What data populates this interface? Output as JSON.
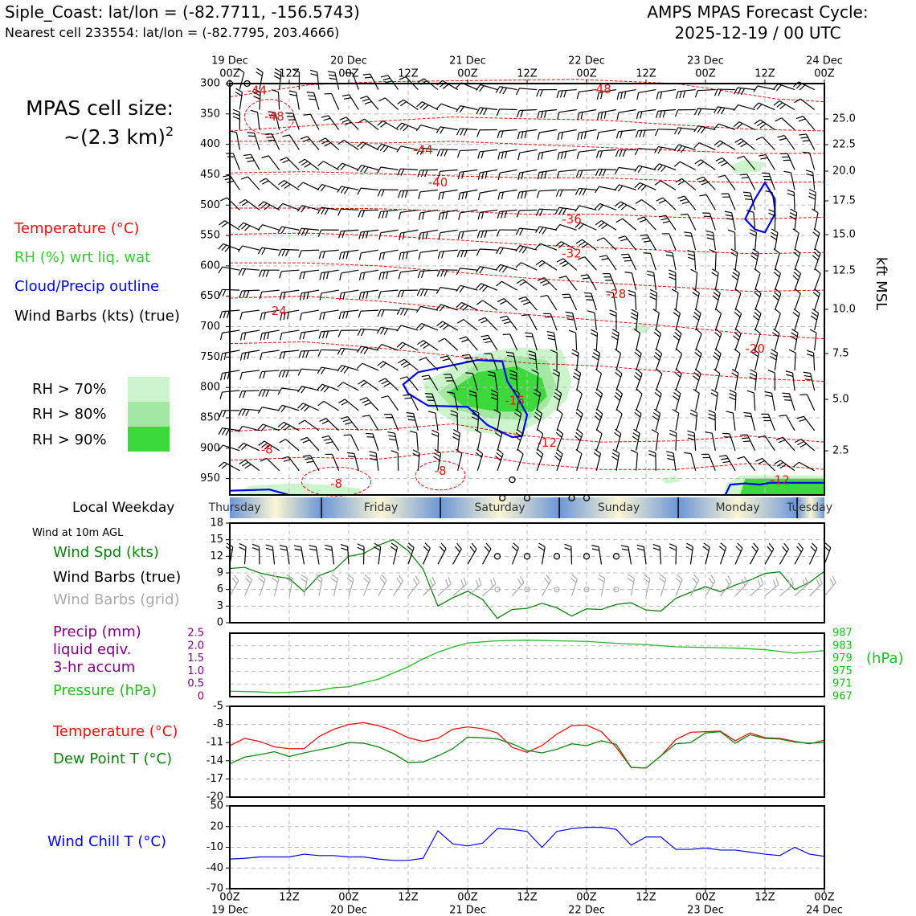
{
  "header": {
    "location_line": "Siple_Coast: lat/lon = (-82.7711, -156.5743)",
    "nearest_line": "Nearest cell 233554: lat/lon = (-82.7795, 203.4666)",
    "forecast_title": "AMPS MPAS Forecast Cycle:",
    "forecast_cycle": "2025-12-19 / 00 UTC"
  },
  "cell_size": {
    "label": "MPAS cell size:",
    "value": "~(2.3 km)",
    "exponent": "2"
  },
  "legend": {
    "temperature": "Temperature (°C)",
    "rh": "RH (%) wrt liq. wat",
    "cloud": "Cloud/Precip outline",
    "wind": "Wind Barbs (kts) (true)",
    "rh70": "RH > 70%",
    "rh80": "RH > 80%",
    "rh90": "RH > 90%"
  },
  "colors": {
    "temperature": "#ee1111",
    "rh_label": "#33cc33",
    "cloud": "#0000ee",
    "rh70": "#ccf5cc",
    "rh80": "#a2e8a2",
    "rh90": "#3bd93b",
    "wind_spd": "#0f7f0f",
    "precip": "#800080",
    "pressure": "#22bb22",
    "dewpoint": "#118811",
    "windchill": "#0000ee",
    "grid_barb": "#aaaaaa",
    "weekday_blue": "#6c96d6",
    "weekday_yellow": "#fbf6d3"
  },
  "time_axis": {
    "top_dates": [
      "19 Dec",
      "20 Dec",
      "21 Dec",
      "22 Dec",
      "23 Dec",
      "24 Dec"
    ],
    "hours": [
      "00Z",
      "12Z",
      "00Z",
      "12Z",
      "00Z",
      "12Z",
      "00Z",
      "12Z",
      "00Z",
      "12Z",
      "00Z"
    ],
    "bottom_dates": [
      "19 Dec",
      "20 Dec",
      "21 Dec",
      "22 Dec",
      "23 Dec",
      "24 Dec"
    ]
  },
  "weekday": {
    "title": "Local Weekday",
    "days": [
      "Thursday",
      "Friday",
      "Saturday",
      "Sunday",
      "Monday",
      "Tuesday"
    ]
  },
  "panels": {
    "wind10m": {
      "title": "Wind at 10m AGL",
      "spd_label": "Wind Spd (kts)",
      "barb_true_label": "Wind Barbs (true)",
      "barb_grid_label": "Wind Barbs (grid)"
    },
    "precip": {
      "precip_label1": "Precip (mm)",
      "precip_label2": "liquid eqiv.",
      "precip_label3": "3-hr accum",
      "pressure_label": "Pressure (hPa)",
      "right_unit": "(hPa)"
    },
    "temp": {
      "temp_label": "Temperature (°C)",
      "dew_label": "Dew Point T (°C)"
    },
    "windchill": {
      "label": "Wind Chill T (°C)"
    }
  },
  "chart_data": [
    {
      "type": "contour",
      "name": "cross_section",
      "x_hours": [
        0,
        120
      ],
      "left_axis_ticks": [
        "300",
        "350",
        "400",
        "450",
        "500",
        "550",
        "600",
        "650",
        "700",
        "750",
        "800",
        "850",
        "900",
        "950"
      ],
      "left_axis_values": [
        300,
        350,
        400,
        450,
        500,
        550,
        600,
        650,
        700,
        750,
        800,
        850,
        900,
        950
      ],
      "right_axis_ticks": [
        "25.0",
        "22.5",
        "20.0",
        "17.5",
        "15.0",
        "12.5",
        "10.0",
        "7.5",
        "5.0",
        "2.5"
      ],
      "right_axis_label": "kft MSL",
      "temperature_contour_labels": [
        {
          "text": "-44",
          "h": 5.5,
          "p": 312
        },
        {
          "text": "-48",
          "h": 9,
          "p": 355
        },
        {
          "text": "-48",
          "h": 75,
          "p": 310
        },
        {
          "text": "-44",
          "h": 39,
          "p": 410
        },
        {
          "text": "-40",
          "h": 42,
          "p": 463
        },
        {
          "text": "-36",
          "h": 69,
          "p": 524
        },
        {
          "text": "-32",
          "h": 69,
          "p": 580
        },
        {
          "text": "-28",
          "h": 78,
          "p": 647
        },
        {
          "text": "-24",
          "h": 9.5,
          "p": 675
        },
        {
          "text": "-20",
          "h": 106,
          "p": 737
        },
        {
          "text": "-16",
          "h": 57.5,
          "p": 822
        },
        {
          "text": "-12",
          "h": 64,
          "p": 892
        },
        {
          "text": "-8",
          "h": 7.5,
          "p": 903
        },
        {
          "text": "-8",
          "h": 21.5,
          "p": 959
        },
        {
          "text": "-8",
          "h": 42.5,
          "p": 938
        },
        {
          "text": "-12",
          "h": 111,
          "p": 953
        }
      ]
    },
    {
      "type": "line",
      "name": "wind_speed_10m",
      "ylim": [
        0,
        18
      ],
      "yticks": [
        0,
        3,
        6,
        9,
        12,
        15,
        18
      ],
      "x_hours": [
        0,
        3,
        6,
        9,
        12,
        15,
        18,
        21,
        24,
        27,
        30,
        33,
        36,
        39,
        42,
        45,
        48,
        51,
        54,
        57,
        60,
        63,
        66,
        69,
        72,
        75,
        78,
        81,
        84,
        87,
        90,
        93,
        96,
        99,
        102,
        105,
        108,
        111,
        114,
        117,
        120
      ],
      "values": [
        9.8,
        10,
        9,
        8.4,
        8,
        5.6,
        8.5,
        9.5,
        12,
        12.5,
        14,
        15,
        13,
        9.7,
        3,
        4.5,
        5.7,
        4.2,
        0.8,
        2.4,
        2.6,
        3.5,
        2.7,
        1.2,
        2.5,
        2.4,
        3.3,
        3.6,
        2.3,
        2.1,
        4.4,
        5.5,
        6.5,
        5.6,
        6.8,
        7.7,
        8.9,
        9.2,
        6,
        7.3,
        9.3
      ],
      "barb_rows_y": [
        12,
        6
      ]
    },
    {
      "type": "line",
      "name": "precip_pressure",
      "left_ylim": [
        0,
        2.5
      ],
      "left_yticks": [
        "0",
        "0.5",
        "1.0",
        "1.5",
        "2.0",
        "2.5"
      ],
      "right_ylim": [
        967,
        987
      ],
      "right_yticks": [
        "967",
        "971",
        "975",
        "979",
        "983",
        "987"
      ],
      "x_hours": [
        0,
        6,
        9,
        12,
        18,
        21,
        24,
        27,
        30,
        36,
        39,
        42,
        45,
        48,
        54,
        60,
        66,
        72,
        78,
        84,
        90,
        96,
        102,
        108,
        114,
        120
      ],
      "pressure": [
        968.7,
        968.5,
        968.2,
        968.4,
        969,
        969.8,
        970.1,
        971.4,
        972.5,
        976.4,
        978.9,
        981,
        982.6,
        983.9,
        984.6,
        984.8,
        984.6,
        984.4,
        983.8,
        983.4,
        982.7,
        982.5,
        982.3,
        981.8,
        980.7,
        981.5
      ],
      "precip": []
    },
    {
      "type": "line",
      "name": "temperature_dewpoint",
      "ylim": [
        -20,
        -5
      ],
      "yticks": [
        "-5",
        "-8",
        "-11",
        "-14",
        "-17",
        "-20"
      ],
      "x_hours": [
        0,
        3,
        6,
        9,
        12,
        15,
        18,
        21,
        24,
        27,
        30,
        33,
        36,
        39,
        42,
        45,
        48,
        51,
        54,
        57,
        60,
        63,
        66,
        69,
        72,
        75,
        78,
        81,
        84,
        87,
        90,
        93,
        96,
        99,
        102,
        105,
        108,
        111,
        114,
        117,
        120
      ],
      "series": [
        {
          "name": "Temperature",
          "values": [
            -11.5,
            -10.3,
            -10.8,
            -11.7,
            -12,
            -12,
            -10,
            -8.8,
            -8,
            -7.7,
            -8.2,
            -9,
            -10.2,
            -10.8,
            -10.3,
            -8.8,
            -8.4,
            -8.7,
            -9.4,
            -11.8,
            -12.6,
            -11.5,
            -9.6,
            -8.2,
            -8.1,
            -9.2,
            -11.8,
            -15.1,
            -15.2,
            -13.2,
            -10.5,
            -9.3,
            -9.2,
            -9.1,
            -10.7,
            -9.4,
            -10.2,
            -10.3,
            -10.8,
            -11.2,
            -10.6
          ]
        },
        {
          "name": "Dew Point",
          "values": [
            -14.5,
            -13.4,
            -13,
            -12.5,
            -13.3,
            -12.7,
            -12.2,
            -11.7,
            -11,
            -11.1,
            -11.7,
            -12.8,
            -14.3,
            -14.2,
            -13.2,
            -12,
            -10.1,
            -10.2,
            -10.4,
            -11.2,
            -12.3,
            -12.7,
            -12.1,
            -11.2,
            -11.5,
            -10.7,
            -11.3,
            -15.1,
            -15.2,
            -13.2,
            -11.2,
            -11,
            -9.4,
            -9.2,
            -11.1,
            -9.7,
            -10.3,
            -10.4,
            -10.9,
            -11.1,
            -11
          ]
        }
      ]
    },
    {
      "type": "line",
      "name": "wind_chill",
      "ylim": [
        -70,
        50
      ],
      "yticks": [
        "50",
        "20",
        "-10",
        "-40",
        "-70"
      ],
      "x_hours": [
        0,
        3,
        6,
        9,
        12,
        15,
        18,
        21,
        24,
        27,
        30,
        33,
        36,
        39,
        42,
        45,
        48,
        51,
        54,
        57,
        60,
        63,
        66,
        69,
        72,
        75,
        78,
        81,
        84,
        87,
        90,
        93,
        96,
        99,
        102,
        105,
        108,
        111,
        114,
        117,
        120
      ],
      "values": [
        -27,
        -26,
        -24,
        -24,
        -24,
        -20,
        -22,
        -22,
        -24,
        -24,
        -27,
        -29,
        -29,
        -26,
        14,
        -5,
        -8,
        -4,
        17,
        16,
        13,
        -10,
        13,
        17,
        19,
        19,
        16,
        -7,
        5,
        5,
        -13,
        -13,
        -11,
        -14,
        -14,
        -17,
        -20,
        -22,
        -10,
        -20,
        -23
      ]
    }
  ]
}
